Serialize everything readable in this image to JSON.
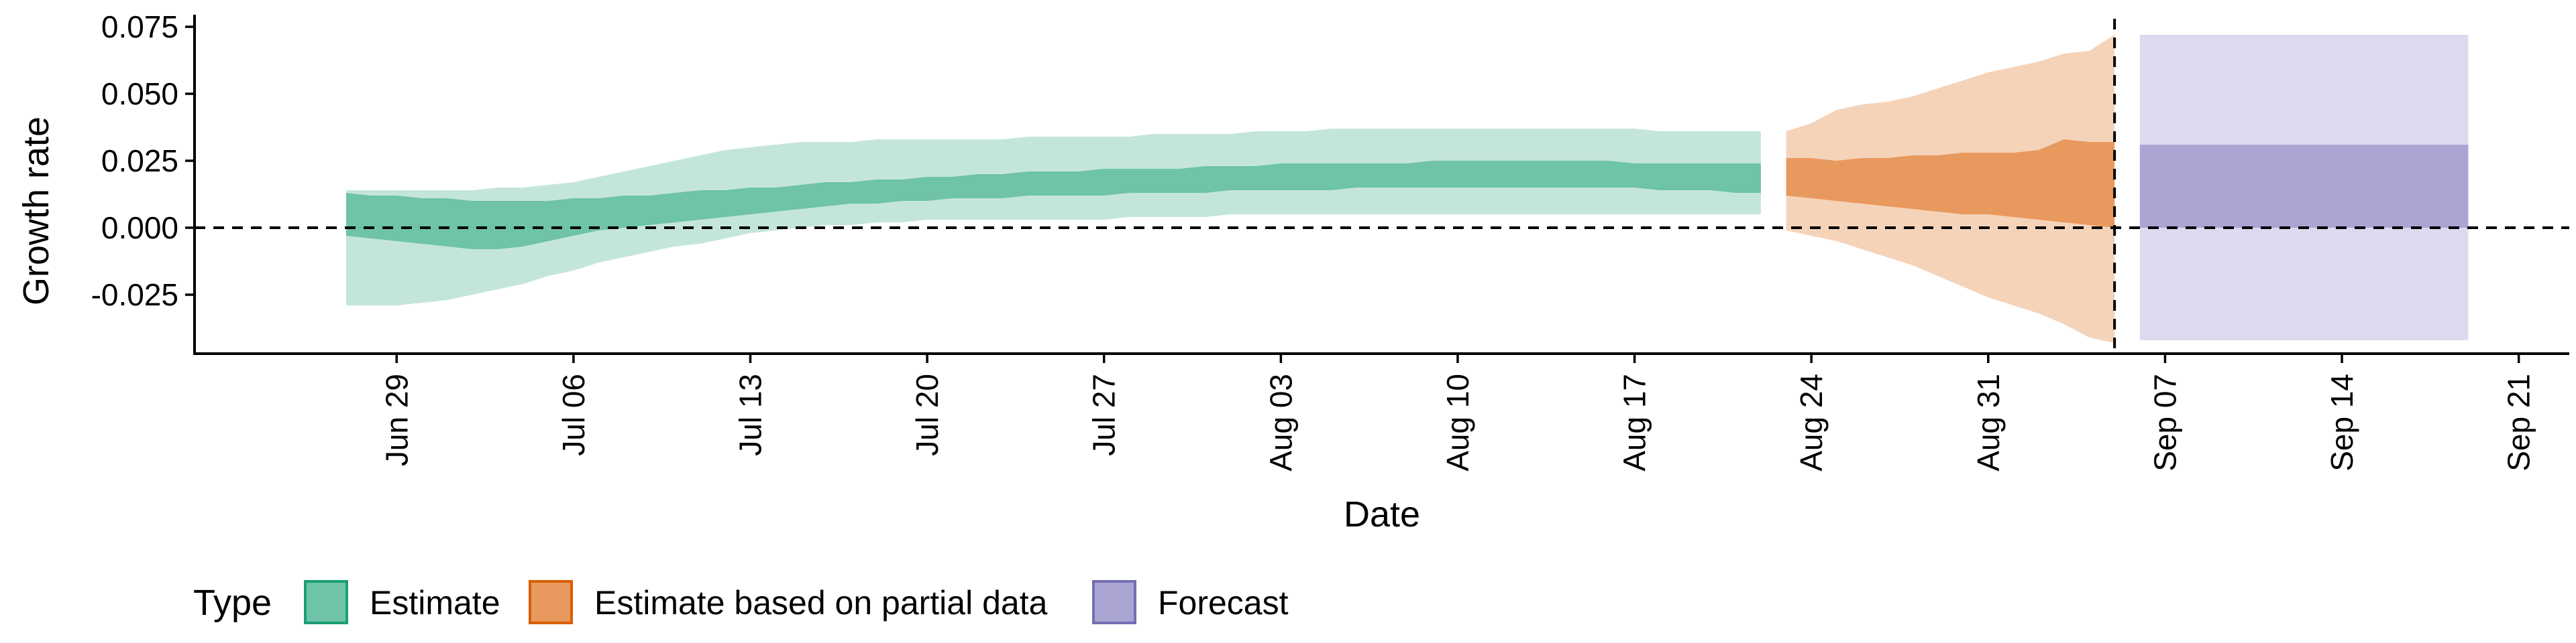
{
  "chart_data": {
    "type": "area",
    "title": "",
    "xlabel": "Date",
    "ylabel": "Growth rate",
    "x_range": [
      "2020-06-21",
      "2020-09-23"
    ],
    "ylim": [
      -0.047,
      0.078
    ],
    "grid": false,
    "x_ticks": [
      "2020-06-29",
      "2020-07-06",
      "2020-07-13",
      "2020-07-20",
      "2020-07-27",
      "2020-08-03",
      "2020-08-10",
      "2020-08-17",
      "2020-08-24",
      "2020-08-31",
      "2020-09-07",
      "2020-09-14",
      "2020-09-21"
    ],
    "x_tick_labels": [
      "Jun 29",
      "Jul 06",
      "Jul 13",
      "Jul 20",
      "Jul 27",
      "Aug 03",
      "Aug 10",
      "Aug 17",
      "Aug 24",
      "Aug 31",
      "Sep 07",
      "Sep 14",
      "Sep 21"
    ],
    "y_ticks": [
      -0.025,
      0.0,
      0.025,
      0.05,
      0.075
    ],
    "y_tick_labels": [
      "-0.025",
      "0.000",
      "0.025",
      "0.050",
      "0.075"
    ],
    "reference_lines": {
      "horizontal_y": 0.0,
      "vertical_x": "2020-09-05"
    },
    "legend": {
      "title": "Type",
      "position": "bottom-left",
      "entries": [
        {
          "label": "Estimate",
          "fill": "#6fc3a6",
          "border": "#1b9e77"
        },
        {
          "label": "Estimate based on partial data",
          "fill": "#e8995e",
          "border": "#d95f02"
        },
        {
          "label": "Forecast",
          "fill": "#aaa5d2",
          "border": "#7570b3"
        }
      ]
    },
    "series": [
      {
        "name": "Estimate",
        "outer_color": "#c4e6da",
        "inner_color": "#6fc3a6",
        "x": [
          "2020-06-27",
          "2020-06-28",
          "2020-06-29",
          "2020-06-30",
          "2020-07-01",
          "2020-07-02",
          "2020-07-03",
          "2020-07-04",
          "2020-07-05",
          "2020-07-06",
          "2020-07-07",
          "2020-07-08",
          "2020-07-09",
          "2020-07-10",
          "2020-07-11",
          "2020-07-12",
          "2020-07-13",
          "2020-07-14",
          "2020-07-15",
          "2020-07-16",
          "2020-07-17",
          "2020-07-18",
          "2020-07-19",
          "2020-07-20",
          "2020-07-21",
          "2020-07-22",
          "2020-07-23",
          "2020-07-24",
          "2020-07-25",
          "2020-07-26",
          "2020-07-27",
          "2020-07-28",
          "2020-07-29",
          "2020-07-30",
          "2020-07-31",
          "2020-08-01",
          "2020-08-02",
          "2020-08-03",
          "2020-08-04",
          "2020-08-05",
          "2020-08-06",
          "2020-08-07",
          "2020-08-08",
          "2020-08-09",
          "2020-08-10",
          "2020-08-11",
          "2020-08-12",
          "2020-08-13",
          "2020-08-14",
          "2020-08-15",
          "2020-08-16",
          "2020-08-17",
          "2020-08-18",
          "2020-08-19",
          "2020-08-20",
          "2020-08-21",
          "2020-08-22"
        ],
        "lower_90": [
          -0.029,
          -0.029,
          -0.029,
          -0.028,
          -0.027,
          -0.025,
          -0.023,
          -0.021,
          -0.018,
          -0.016,
          -0.013,
          -0.011,
          -0.009,
          -0.007,
          -0.006,
          -0.004,
          -0.002,
          -0.001,
          0.0,
          0.001,
          0.001,
          0.002,
          0.002,
          0.003,
          0.003,
          0.003,
          0.003,
          0.003,
          0.003,
          0.003,
          0.003,
          0.004,
          0.004,
          0.004,
          0.004,
          0.005,
          0.005,
          0.005,
          0.005,
          0.005,
          0.005,
          0.005,
          0.005,
          0.005,
          0.005,
          0.005,
          0.005,
          0.005,
          0.005,
          0.005,
          0.005,
          0.005,
          0.005,
          0.005,
          0.005,
          0.005,
          0.005
        ],
        "lower_50": [
          -0.003,
          -0.004,
          -0.005,
          -0.006,
          -0.007,
          -0.008,
          -0.008,
          -0.007,
          -0.005,
          -0.003,
          -0.001,
          0.0,
          0.001,
          0.002,
          0.003,
          0.004,
          0.005,
          0.006,
          0.007,
          0.008,
          0.009,
          0.009,
          0.01,
          0.01,
          0.011,
          0.011,
          0.011,
          0.012,
          0.012,
          0.012,
          0.012,
          0.013,
          0.013,
          0.013,
          0.013,
          0.014,
          0.014,
          0.014,
          0.014,
          0.014,
          0.015,
          0.015,
          0.015,
          0.015,
          0.015,
          0.015,
          0.015,
          0.015,
          0.015,
          0.015,
          0.015,
          0.015,
          0.014,
          0.014,
          0.014,
          0.013,
          0.013
        ],
        "upper_50": [
          0.013,
          0.012,
          0.012,
          0.011,
          0.011,
          0.01,
          0.01,
          0.01,
          0.01,
          0.011,
          0.011,
          0.012,
          0.012,
          0.013,
          0.014,
          0.014,
          0.015,
          0.015,
          0.016,
          0.017,
          0.017,
          0.018,
          0.018,
          0.019,
          0.019,
          0.02,
          0.02,
          0.021,
          0.021,
          0.021,
          0.022,
          0.022,
          0.022,
          0.022,
          0.023,
          0.023,
          0.023,
          0.024,
          0.024,
          0.024,
          0.024,
          0.024,
          0.024,
          0.025,
          0.025,
          0.025,
          0.025,
          0.025,
          0.025,
          0.025,
          0.025,
          0.024,
          0.024,
          0.024,
          0.024,
          0.024,
          0.024
        ],
        "upper_90": [
          0.014,
          0.014,
          0.014,
          0.014,
          0.014,
          0.014,
          0.015,
          0.015,
          0.016,
          0.017,
          0.019,
          0.021,
          0.023,
          0.025,
          0.027,
          0.029,
          0.03,
          0.031,
          0.032,
          0.032,
          0.032,
          0.033,
          0.033,
          0.033,
          0.033,
          0.033,
          0.033,
          0.034,
          0.034,
          0.034,
          0.034,
          0.034,
          0.035,
          0.035,
          0.035,
          0.035,
          0.036,
          0.036,
          0.036,
          0.037,
          0.037,
          0.037,
          0.037,
          0.037,
          0.037,
          0.037,
          0.037,
          0.037,
          0.037,
          0.037,
          0.037,
          0.037,
          0.036,
          0.036,
          0.036,
          0.036,
          0.036
        ]
      },
      {
        "name": "Estimate based on partial data",
        "outer_color": "#f5d3b9",
        "inner_color": "#e8995e",
        "x": [
          "2020-08-23",
          "2020-08-24",
          "2020-08-25",
          "2020-08-26",
          "2020-08-27",
          "2020-08-28",
          "2020-08-29",
          "2020-08-30",
          "2020-08-31",
          "2020-09-01",
          "2020-09-02",
          "2020-09-03",
          "2020-09-04",
          "2020-09-05"
        ],
        "lower_90": [
          -0.001,
          -0.003,
          -0.005,
          -0.008,
          -0.011,
          -0.014,
          -0.018,
          -0.022,
          -0.026,
          -0.029,
          -0.032,
          -0.036,
          -0.041,
          -0.043
        ],
        "lower_50": [
          0.012,
          0.011,
          0.01,
          0.009,
          0.008,
          0.007,
          0.006,
          0.005,
          0.005,
          0.004,
          0.003,
          0.002,
          0.001,
          0.0
        ],
        "upper_50": [
          0.026,
          0.026,
          0.025,
          0.026,
          0.026,
          0.027,
          0.027,
          0.028,
          0.028,
          0.028,
          0.029,
          0.033,
          0.032,
          0.032
        ],
        "upper_90": [
          0.036,
          0.039,
          0.044,
          0.046,
          0.047,
          0.049,
          0.052,
          0.055,
          0.058,
          0.06,
          0.062,
          0.065,
          0.066,
          0.072
        ]
      },
      {
        "name": "Forecast",
        "outer_color": "#dcdaee",
        "inner_color": "#aaa5d2",
        "x": [
          "2020-09-06",
          "2020-09-19"
        ],
        "lower_90": [
          -0.042,
          -0.042
        ],
        "lower_50": [
          0.0,
          0.0
        ],
        "upper_50": [
          0.031,
          0.031
        ],
        "upper_90": [
          0.072,
          0.072
        ]
      }
    ]
  }
}
